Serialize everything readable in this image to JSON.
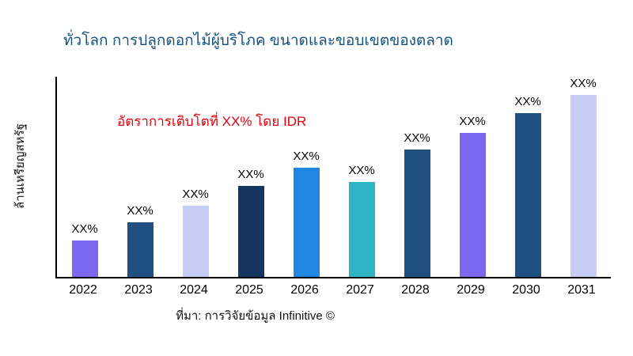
{
  "title": "ทั่วโลก การปลูกดอกไม้ผู้บริโภค ขนาดและขอบเขตของตลาด",
  "title_color": "#15517e",
  "ylabel": "ล้านเหรียญสหรัฐ",
  "annotation": {
    "text": "อัตราการเติบโตที่ XX% โดย IDR",
    "color": "#e8000d"
  },
  "source": "ที่มา: การวิจัยข้อมูล Infinitive ©",
  "chart_data": {
    "type": "bar",
    "title": "ทั่วโลก การปลูกดอกไม้ผู้บริโภค ขนาดและขอบเขตของตลาด",
    "xlabel": "",
    "ylabel": "ล้านเหรียญสหรัฐ",
    "categories": [
      "2022",
      "2023",
      "2024",
      "2025",
      "2026",
      "2027",
      "2028",
      "2029",
      "2030",
      "2031"
    ],
    "values": [
      20,
      30,
      39,
      50,
      60,
      52,
      70,
      79,
      90,
      100
    ],
    "bar_labels": [
      "XX%",
      "XX%",
      "XX%",
      "XX%",
      "XX%",
      "XX%",
      "XX%",
      "XX%",
      "XX%",
      "XX%"
    ],
    "bar_colors": [
      "#7b68ee",
      "#1f5081",
      "#c8cdf5",
      "#14355f",
      "#2087e2",
      "#2fb3c7",
      "#1f5081",
      "#7b68ee",
      "#1f5081",
      "#c8cdf5"
    ],
    "ylim": [
      0,
      110
    ],
    "grid": false,
    "legend": "none",
    "annotation": "อัตราการเติบโตที่ XX% โดย IDR"
  }
}
